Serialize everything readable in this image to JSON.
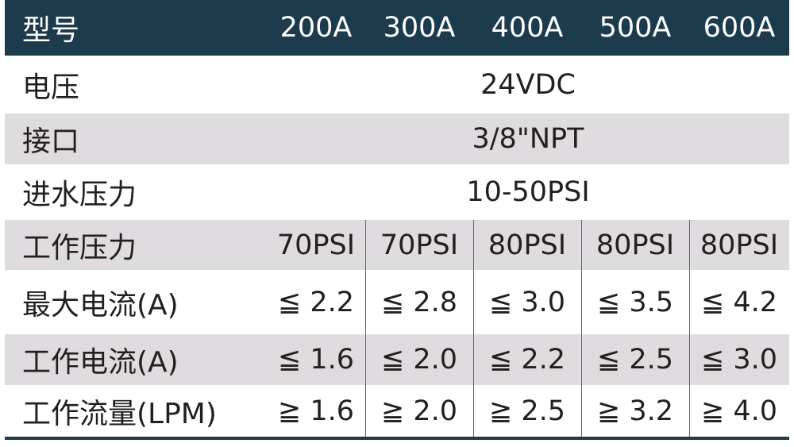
{
  "header": {
    "label": "型号",
    "models": [
      "200A",
      "300A",
      "400A",
      "500A",
      "600A"
    ]
  },
  "rows": {
    "voltage": {
      "label": "电压",
      "value": "24VDC"
    },
    "port": {
      "label": "接口",
      "value": "3/8\"NPT"
    },
    "inlet_pressure": {
      "label": "进水压力",
      "value": "10-50PSI"
    },
    "working_pressure": {
      "label": "工作压力",
      "values": [
        "70PSI",
        "70PSI",
        "80PSI",
        "80PSI",
        "80PSI"
      ]
    },
    "max_current": {
      "label": "最大电流(A)",
      "values": [
        "≦ 2.2",
        "≦ 2.8",
        "≦ 3.0",
        "≦ 3.5",
        "≦ 4.2"
      ]
    },
    "working_current": {
      "label": "工作电流(A)",
      "values": [
        "≦ 1.6",
        "≦ 2.0",
        "≦ 2.2",
        "≦ 2.5",
        "≦ 3.0"
      ]
    },
    "working_flow": {
      "label": "工作流量(LPM)",
      "values": [
        "≧ 1.6",
        "≧ 2.0",
        "≧ 2.5",
        "≧ 3.2",
        "≧ 4.0"
      ]
    }
  },
  "colors": {
    "header_bg": "#1c3b4d",
    "stripe_bg": "#dedcdf",
    "divider": "#3a6f8e"
  }
}
